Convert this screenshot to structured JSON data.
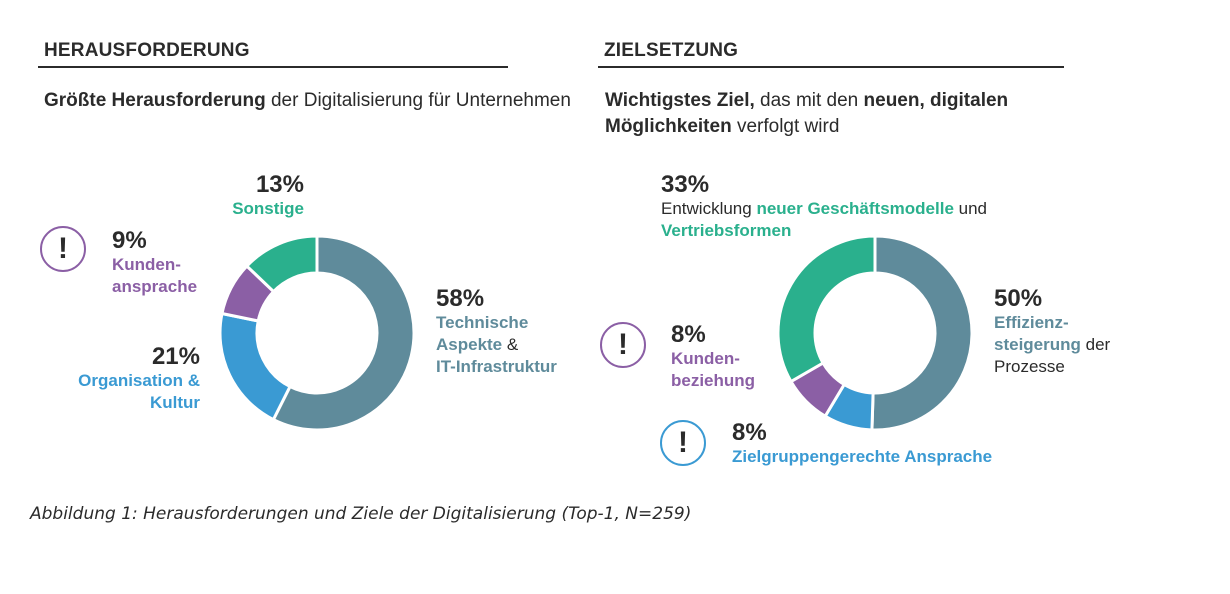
{
  "colors": {
    "slate": "#5f8b9b",
    "green": "#2ab08d",
    "purple": "#8b5fa5",
    "blue": "#3a9ad3",
    "text": "#2b2b2b"
  },
  "left": {
    "section_title": "HERAUSFORDERUNG",
    "subtitle_bold": "Größte Herausforderung",
    "subtitle_rest": " der Digitalisierung für Unternehmen",
    "labels": {
      "technik": {
        "pct": "58%",
        "line1": "Technische",
        "line2_colored": "Aspekte",
        "line2_plain": " &",
        "line3": "IT-Infrastruktur"
      },
      "organisation": {
        "pct": "21%",
        "line1": "Organisation &",
        "line2": "Kultur"
      },
      "kunden": {
        "pct": "9%",
        "line1": "Kunden-",
        "line2": "ansprache",
        "icon": "exclamation-alert-icon"
      },
      "sonstige": {
        "pct": "13%",
        "line1": "Sonstige"
      }
    }
  },
  "right": {
    "section_title": "ZIELSETZUNG",
    "subtitle_bold1": "Wichtigstes Ziel,",
    "subtitle_plain1": " das mit den ",
    "subtitle_bold2": "neuen, digitalen",
    "subtitle_bold3": "Möglichkeiten",
    "subtitle_plain2": " verfolgt wird",
    "labels": {
      "effizienz": {
        "pct": "50%",
        "line1": "Effizienz-",
        "line2_colored": "steigerung",
        "line2_plain": " der",
        "line3": "Prozesse"
      },
      "geschaeft": {
        "pct": "33%",
        "line1_plain": "Entwicklung ",
        "line1_colored": "neuer Geschäftsmodelle",
        "line1_plain2": " und",
        "line2": "Vertriebsformen"
      },
      "kundenbeziehung": {
        "pct": "8%",
        "line1": "Kunden-",
        "line2": "beziehung",
        "icon": "exclamation-alert-icon"
      },
      "zielgruppe": {
        "pct": "8%",
        "line1": "Zielgruppengerechte Ansprache",
        "icon": "exclamation-alert-icon"
      }
    }
  },
  "caption": "Abbildung 1: Herausforderungen und Ziele der Digitalisierung (Top-1, N=259)",
  "chart_data": [
    {
      "type": "pie",
      "variant": "donut",
      "title": "Größte Herausforderung der Digitalisierung für Unternehmen",
      "categories": [
        "Technische Aspekte & IT-Infrastruktur",
        "Organisation & Kultur",
        "Kundenansprache",
        "Sonstige"
      ],
      "values": [
        58,
        21,
        9,
        13
      ],
      "unit": "%",
      "colors": [
        "#5f8b9b",
        "#3a9ad3",
        "#8b5fa5",
        "#2ab08d"
      ],
      "start": "top",
      "direction": "clockwise"
    },
    {
      "type": "pie",
      "variant": "donut",
      "title": "Wichtigstes Ziel, das mit den neuen, digitalen Möglichkeiten verfolgt wird",
      "categories": [
        "Effizienzsteigerung der Prozesse",
        "Zielgruppengerechte Ansprache",
        "Kundenbeziehung",
        "Entwicklung neuer Geschäftsmodelle und Vertriebsformen"
      ],
      "values": [
        50,
        8,
        8,
        33
      ],
      "unit": "%",
      "colors": [
        "#5f8b9b",
        "#3a9ad3",
        "#8b5fa5",
        "#2ab08d"
      ],
      "start": "top",
      "direction": "clockwise"
    }
  ]
}
